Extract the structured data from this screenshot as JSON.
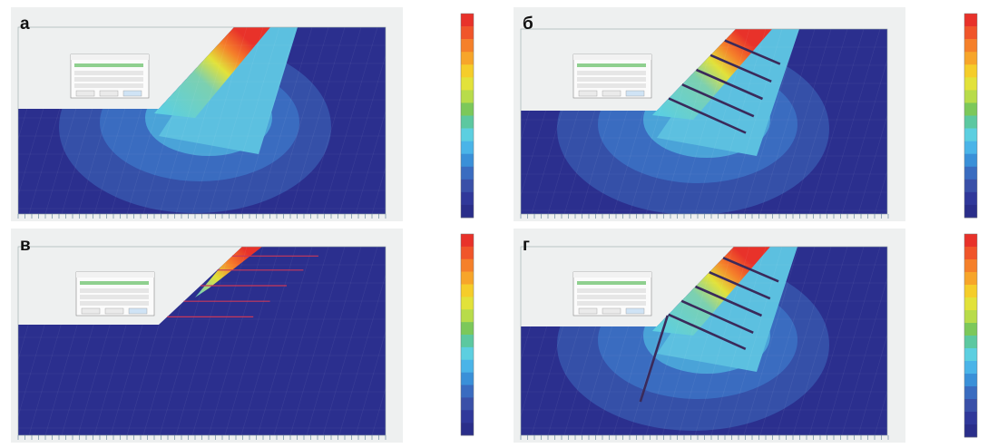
{
  "panels": [
    {
      "label": "а"
    },
    {
      "label": "б"
    },
    {
      "label": "в"
    },
    {
      "label": "г"
    }
  ]
}
